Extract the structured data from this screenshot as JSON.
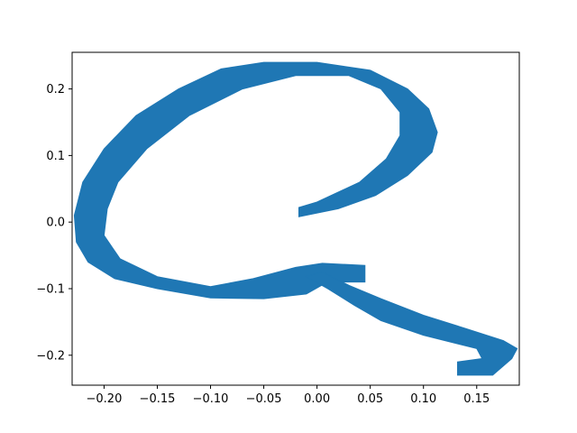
{
  "chart_data": {
    "type": "area",
    "title": "",
    "xlabel": "",
    "ylabel": "",
    "xlim": [
      -0.23,
      0.19
    ],
    "ylim": [
      -0.245,
      0.255
    ],
    "xticks": [
      -0.2,
      -0.15,
      -0.1,
      -0.05,
      0.0,
      0.05,
      0.1,
      0.15
    ],
    "xtick_labels": [
      "−0.20",
      "−0.15",
      "−0.10",
      "−0.05",
      "0.00",
      "0.05",
      "0.10",
      "0.15"
    ],
    "yticks": [
      -0.2,
      -0.1,
      0.0,
      0.1,
      0.2
    ],
    "ytick_labels": [
      "−0.2",
      "−0.1",
      "0.0",
      "0.1",
      "0.2"
    ],
    "grid": false,
    "legend": "none",
    "fill_color": "#1f77b4",
    "shape": {
      "outer_loop": [
        [
          -0.017,
          0.008
        ],
        [
          0.02,
          0.02
        ],
        [
          0.055,
          0.04
        ],
        [
          0.085,
          0.07
        ],
        [
          0.108,
          0.105
        ],
        [
          0.113,
          0.135
        ],
        [
          0.105,
          0.17
        ],
        [
          0.085,
          0.2
        ],
        [
          0.05,
          0.228
        ],
        [
          0.0,
          0.24
        ],
        [
          -0.05,
          0.24
        ],
        [
          -0.09,
          0.23
        ],
        [
          -0.13,
          0.2
        ],
        [
          -0.17,
          0.16
        ],
        [
          -0.2,
          0.11
        ],
        [
          -0.22,
          0.06
        ],
        [
          -0.228,
          0.01
        ],
        [
          -0.226,
          -0.03
        ],
        [
          -0.215,
          -0.06
        ],
        [
          -0.19,
          -0.085
        ],
        [
          -0.15,
          -0.1
        ],
        [
          -0.1,
          -0.114
        ],
        [
          -0.05,
          -0.115
        ],
        [
          -0.01,
          -0.108
        ],
        [
          0.01,
          -0.09
        ],
        [
          0.045,
          -0.09
        ],
        [
          0.045,
          -0.065
        ],
        [
          0.005,
          -0.062
        ],
        [
          -0.02,
          -0.068
        ],
        [
          -0.06,
          -0.085
        ],
        [
          -0.1,
          -0.097
        ],
        [
          -0.15,
          -0.082
        ],
        [
          -0.185,
          -0.055
        ],
        [
          -0.2,
          -0.02
        ],
        [
          -0.197,
          0.02
        ],
        [
          -0.187,
          0.06
        ],
        [
          -0.16,
          0.11
        ],
        [
          -0.12,
          0.16
        ],
        [
          -0.07,
          0.2
        ],
        [
          -0.02,
          0.22
        ],
        [
          0.03,
          0.22
        ],
        [
          0.06,
          0.2
        ],
        [
          0.078,
          0.165
        ],
        [
          0.078,
          0.13
        ],
        [
          0.065,
          0.095
        ],
        [
          0.04,
          0.06
        ],
        [
          0.0,
          0.03
        ],
        [
          -0.017,
          0.022
        ]
      ],
      "tail": [
        [
          0.005,
          -0.075
        ],
        [
          0.03,
          -0.095
        ],
        [
          0.06,
          -0.115
        ],
        [
          0.1,
          -0.14
        ],
        [
          0.14,
          -0.16
        ],
        [
          0.175,
          -0.178
        ],
        [
          0.188,
          -0.19
        ],
        [
          0.183,
          -0.205
        ],
        [
          0.165,
          -0.23
        ],
        [
          0.132,
          -0.23
        ],
        [
          0.132,
          -0.21
        ],
        [
          0.155,
          -0.205
        ],
        [
          0.15,
          -0.19
        ],
        [
          0.1,
          -0.17
        ],
        [
          0.06,
          -0.148
        ],
        [
          0.035,
          -0.125
        ],
        [
          0.01,
          -0.1
        ],
        [
          -0.01,
          -0.082
        ]
      ]
    }
  }
}
